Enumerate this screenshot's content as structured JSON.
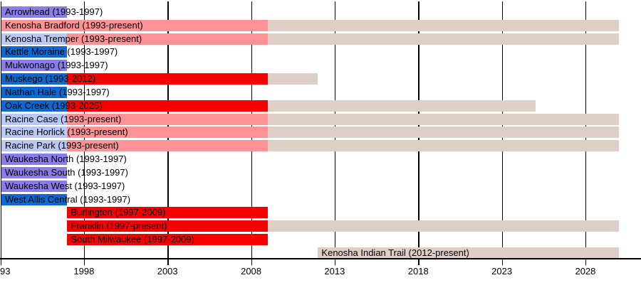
{
  "chart_data": {
    "type": "timeline",
    "title": "",
    "description": "Gantt-style membership timeline of schools, 1993 to present",
    "x_axis": {
      "start_year": 1993,
      "end_year_visible": 2031,
      "present_year_cap": 2030,
      "solid_color_until_year": 2009,
      "ticks": [
        {
          "year": 1993,
          "label": "93"
        },
        {
          "year": 1998,
          "label": "1998"
        },
        {
          "year": 2003,
          "label": "2003"
        },
        {
          "year": 2008,
          "label": "2008"
        },
        {
          "year": 2013,
          "label": "2013"
        },
        {
          "year": 2018,
          "label": "2018"
        },
        {
          "year": 2023,
          "label": "2023"
        },
        {
          "year": 2028,
          "label": "2028"
        }
      ]
    },
    "palette": {
      "blue": "#0d69d2",
      "purple": "#8a7de9",
      "light_blue": "#b9c8f5",
      "pink": "#fc9196",
      "red": "#f70000",
      "beige": "#ddcfc5",
      "axis": "#000000",
      "text": "#000000",
      "background": "#ffffff"
    },
    "rows": [
      {
        "label": "Arrowhead (1993-1997)",
        "segments": [
          {
            "from": 1993,
            "to": 1997,
            "color": "purple"
          }
        ]
      },
      {
        "label": "Kenosha Bradford (1993-present)",
        "segments": [
          {
            "from": 1993,
            "to": 2009,
            "color": "pink"
          },
          {
            "from": 2009,
            "to": 2030,
            "color": "beige"
          }
        ]
      },
      {
        "label": "Kenosha Tremper (1993-present)",
        "segments": [
          {
            "from": 1993,
            "to": 1997,
            "color": "light_blue"
          },
          {
            "from": 1997,
            "to": 2009,
            "color": "pink"
          },
          {
            "from": 2009,
            "to": 2030,
            "color": "beige"
          }
        ]
      },
      {
        "label": "Kettle Moraine (1993-1997)",
        "segments": [
          {
            "from": 1993,
            "to": 1997,
            "color": "blue"
          }
        ]
      },
      {
        "label": "Mukwonago (1993-1997)",
        "segments": [
          {
            "from": 1993,
            "to": 1997,
            "color": "purple"
          }
        ]
      },
      {
        "label": "Muskego (1993-2012)",
        "segments": [
          {
            "from": 1993,
            "to": 1997,
            "color": "blue"
          },
          {
            "from": 1997,
            "to": 2009,
            "color": "red"
          },
          {
            "from": 2009,
            "to": 2012,
            "color": "beige"
          }
        ]
      },
      {
        "label": "Nathan Hale (1993-1997)",
        "segments": [
          {
            "from": 1993,
            "to": 1997,
            "color": "blue"
          }
        ]
      },
      {
        "label": "Oak Creek (1993-2025)",
        "segments": [
          {
            "from": 1993,
            "to": 1997,
            "color": "blue"
          },
          {
            "from": 1997,
            "to": 2009,
            "color": "red"
          },
          {
            "from": 2009,
            "to": 2025,
            "color": "beige"
          }
        ]
      },
      {
        "label": "Racine Case (1993-present)",
        "segments": [
          {
            "from": 1993,
            "to": 1997,
            "color": "light_blue"
          },
          {
            "from": 1997,
            "to": 2009,
            "color": "pink"
          },
          {
            "from": 2009,
            "to": 2030,
            "color": "beige"
          }
        ]
      },
      {
        "label": "Racine Horlick (1993-present)",
        "segments": [
          {
            "from": 1993,
            "to": 1997,
            "color": "light_blue"
          },
          {
            "from": 1997,
            "to": 2009,
            "color": "pink"
          },
          {
            "from": 2009,
            "to": 2030,
            "color": "beige"
          }
        ]
      },
      {
        "label": "Racine Park (1993-present)",
        "segments": [
          {
            "from": 1993,
            "to": 1997,
            "color": "light_blue"
          },
          {
            "from": 1997,
            "to": 2009,
            "color": "pink"
          },
          {
            "from": 2009,
            "to": 2030,
            "color": "beige"
          }
        ]
      },
      {
        "label": "Waukesha North (1993-1997)",
        "segments": [
          {
            "from": 1993,
            "to": 1997,
            "color": "purple"
          }
        ]
      },
      {
        "label": "Waukesha South (1993-1997)",
        "segments": [
          {
            "from": 1993,
            "to": 1997,
            "color": "purple"
          }
        ]
      },
      {
        "label": "Waukesha West (1993-1997)",
        "segments": [
          {
            "from": 1993,
            "to": 1997,
            "color": "purple"
          }
        ]
      },
      {
        "label": "West Allis Central (1993-1997)",
        "segments": [
          {
            "from": 1993,
            "to": 1997,
            "color": "blue"
          }
        ]
      },
      {
        "label": "Burlington (1997-2009)",
        "segments": [
          {
            "from": 1997,
            "to": 2009,
            "color": "red"
          }
        ]
      },
      {
        "label": "Franklin (1997-present)",
        "segments": [
          {
            "from": 1997,
            "to": 2009,
            "color": "red"
          },
          {
            "from": 2009,
            "to": 2030,
            "color": "beige"
          }
        ]
      },
      {
        "label": "South Milwaukee (1997-2009)",
        "segments": [
          {
            "from": 1997,
            "to": 2009,
            "color": "red"
          }
        ]
      },
      {
        "label": "Kenosha Indian Trail (2012-present)",
        "segments": [
          {
            "from": 2012,
            "to": 2030,
            "color": "beige"
          }
        ]
      }
    ]
  }
}
